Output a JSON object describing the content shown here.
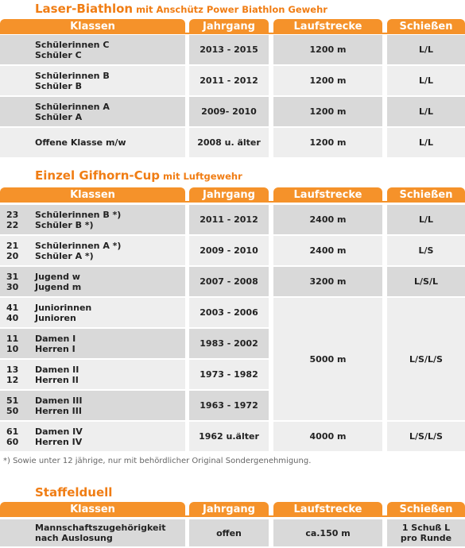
{
  "sections": [
    {
      "title": "Laser-Biathlon",
      "subtitle": "mit Anschütz Power Biathlon Gewehr",
      "header": [
        "Klassen",
        "Jahrgang",
        "Laufstrecke",
        "Schießen"
      ],
      "rows": [
        {
          "klassen": [
            "Schülerinnen C",
            "Schüler C"
          ],
          "jahrgang": "2013 - 2015",
          "laufstrecke": "1200 m",
          "schiessen": [
            "L/L"
          ]
        },
        {
          "klassen": [
            "Schülerinnen B",
            "Schüler B"
          ],
          "jahrgang": "2011 - 2012",
          "laufstrecke": "1200 m",
          "schiessen": [
            "L/L"
          ]
        },
        {
          "klassen": [
            "Schülerinnen A",
            "Schüler A"
          ],
          "jahrgang": "2009- 2010",
          "laufstrecke": "1200 m",
          "schiessen": [
            "L/L"
          ]
        },
        {
          "klassen": [
            "Offene Klasse m/w"
          ],
          "jahrgang": "2008 u. älter",
          "laufstrecke": "1200 m",
          "schiessen": [
            "L/L"
          ]
        }
      ]
    },
    {
      "title": "Einzel Gifhorn-Cup",
      "subtitle": "mit Luftgewehr",
      "header": [
        "Klassen",
        "Jahrgang",
        "Laufstrecke",
        "Schießen"
      ],
      "shared": {
        "laufstrecke": "5000 m",
        "schiessen": [
          "L/S/L/S"
        ]
      },
      "rows": [
        {
          "nums": [
            "23",
            "22"
          ],
          "klassen": [
            "Schülerinnen B *)",
            "Schüler B *)"
          ],
          "jahrgang": "2011 - 2012",
          "laufstrecke": "2400 m",
          "schiessen": [
            "L/L"
          ]
        },
        {
          "nums": [
            "21",
            "20"
          ],
          "klassen": [
            "Schülerinnen A *)",
            "Schüler A *)"
          ],
          "jahrgang": "2009 - 2010",
          "laufstrecke": "2400 m",
          "schiessen": [
            "L/S"
          ]
        },
        {
          "nums": [
            "31",
            "30"
          ],
          "klassen": [
            "Jugend w",
            "Jugend m"
          ],
          "jahrgang": "2007 - 2008",
          "laufstrecke": "3200 m",
          "schiessen": [
            "L/S/L"
          ]
        },
        {
          "nums": [
            "41",
            "40"
          ],
          "klassen": [
            "Juniorinnen",
            "Junioren"
          ],
          "jahrgang": "2003 - 2006"
        },
        {
          "nums": [
            "11",
            "10"
          ],
          "klassen": [
            "Damen I",
            "Herren I"
          ],
          "jahrgang": "1983 - 2002"
        },
        {
          "nums": [
            "13",
            "12"
          ],
          "klassen": [
            "Damen II",
            "Herren II"
          ],
          "jahrgang": "1973 - 1982"
        },
        {
          "nums": [
            "51",
            "50"
          ],
          "klassen": [
            "Damen III",
            "Herren III"
          ],
          "jahrgang": "1963 - 1972"
        },
        {
          "nums": [
            "61",
            "60"
          ],
          "klassen": [
            "Damen IV",
            "Herren IV"
          ],
          "jahrgang": "1962 u.älter",
          "laufstrecke": "4000 m",
          "schiessen": [
            "L/S/L/S"
          ]
        }
      ]
    },
    {
      "title": "Staffelduell",
      "header": [
        "Klassen",
        "Jahrgang",
        "Laufstrecke",
        "Schießen"
      ],
      "rows": [
        {
          "klassen": [
            "Mannschaftszugehörigkeit",
            "nach Auslosung"
          ],
          "jahrgang": "offen",
          "laufstrecke": "ca.150 m",
          "schiessen": [
            "1 Schuß L",
            "pro Runde"
          ]
        }
      ]
    }
  ],
  "footnote": "*) Sowie unter 12 jährige, nur mit behördlicher Original Sondergenehmigung."
}
